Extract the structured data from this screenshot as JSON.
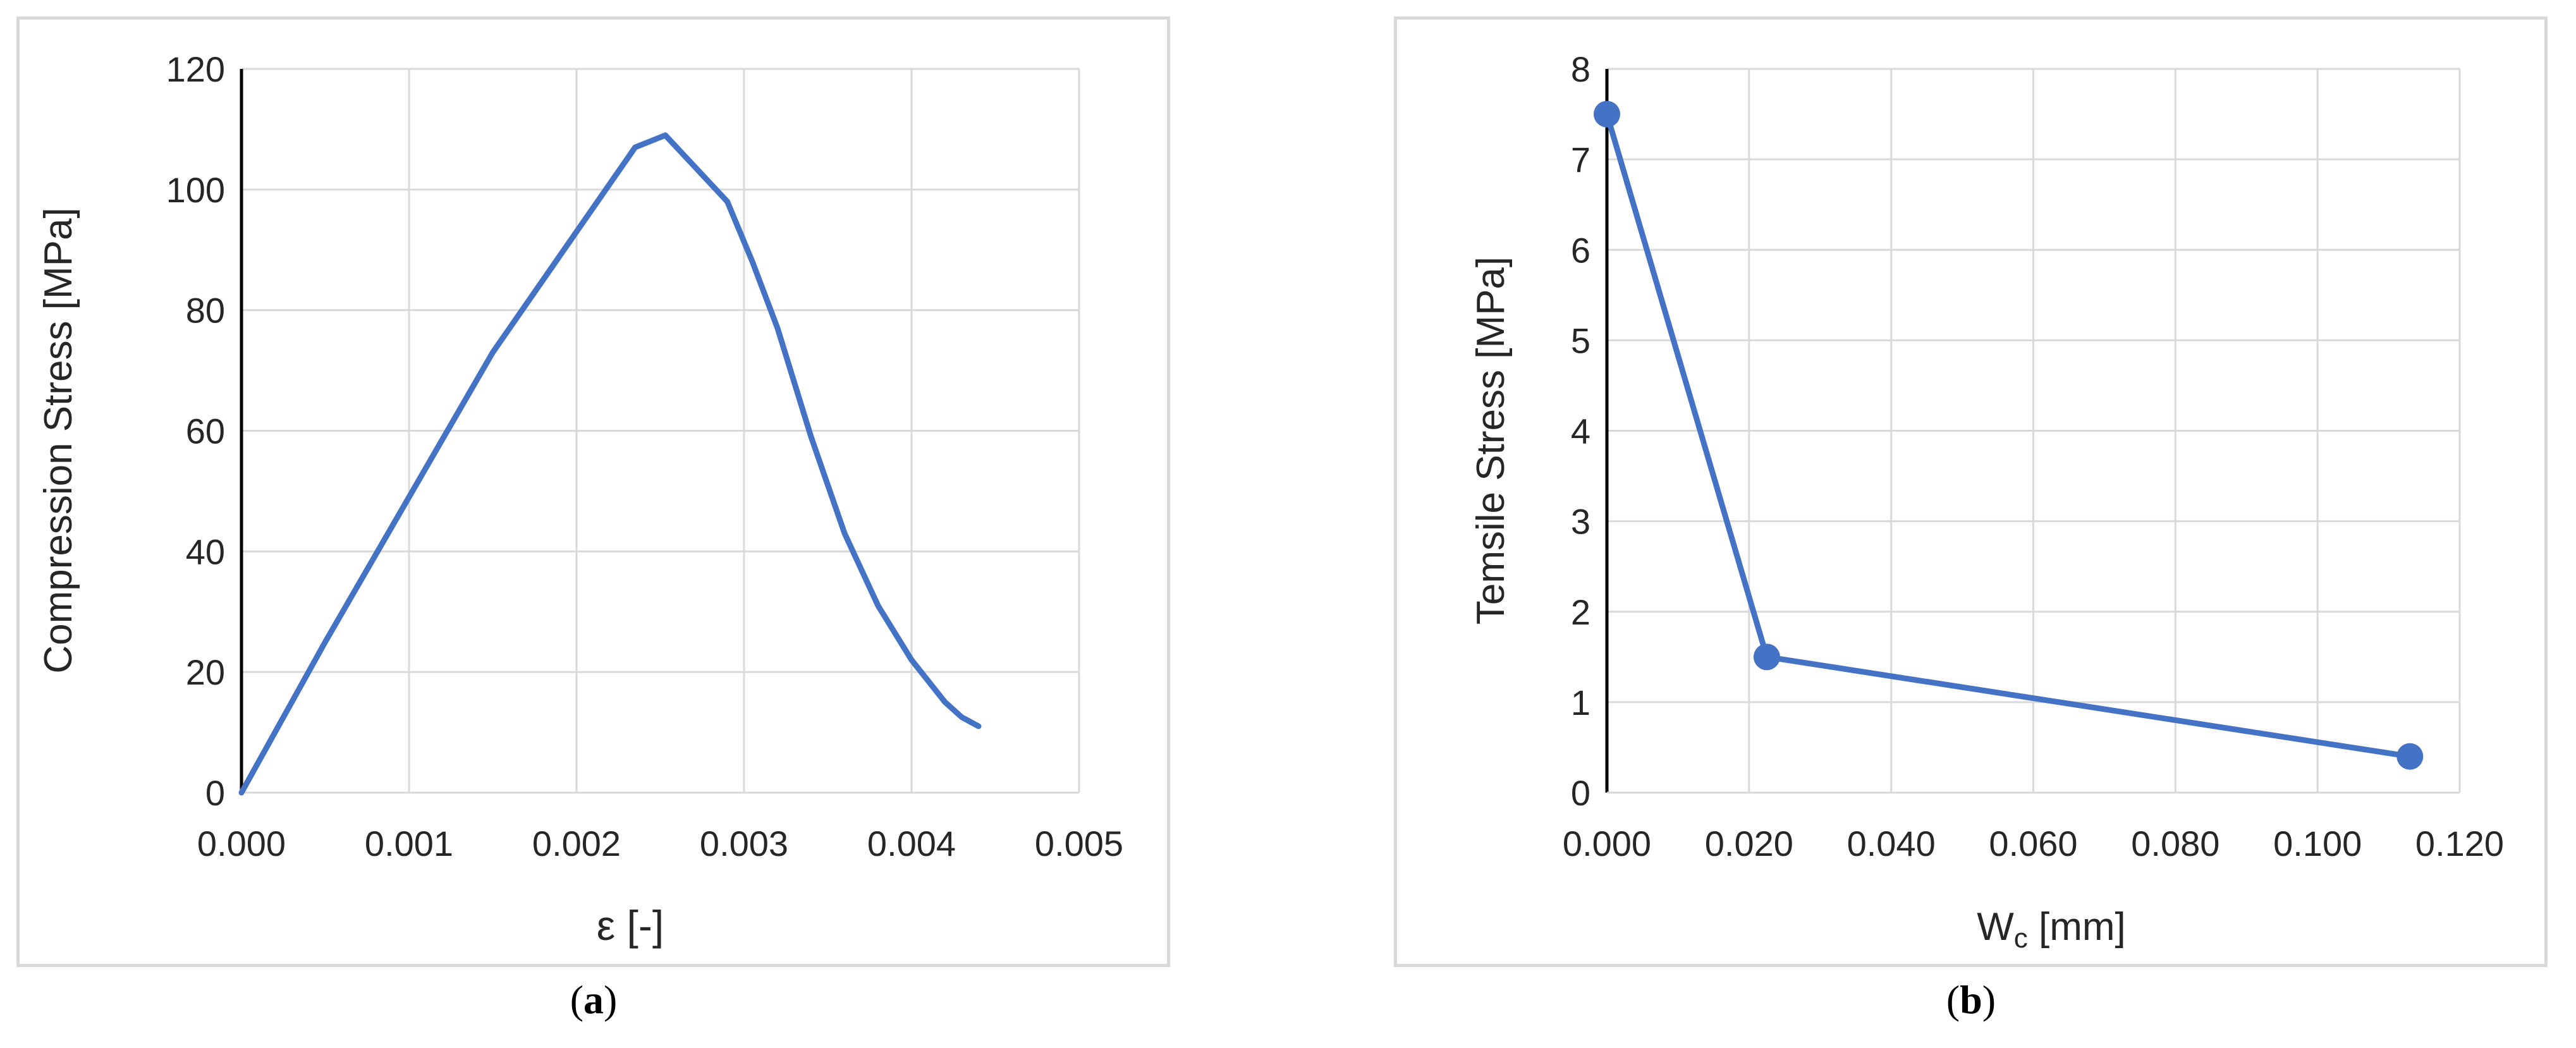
{
  "charts": {
    "a": {
      "caption_letter": "a",
      "ylabel": "Compression Stress [MPa]",
      "xlabel": "ε [-]"
    },
    "b": {
      "caption_letter": "b",
      "ylabel": "Temsile Stress [MPa]",
      "xlabel_main": "W",
      "xlabel_sub": "c",
      "xlabel_unit": " [mm]"
    }
  },
  "chart_data": [
    {
      "type": "line",
      "xlabel": "ε [-]",
      "ylabel": "Compression Stress [MPa]",
      "xlim": [
        0,
        0.005
      ],
      "ylim": [
        0,
        120
      ],
      "xticks": [
        "0.000",
        "0.001",
        "0.002",
        "0.003",
        "0.004",
        "0.005"
      ],
      "yticks": [
        "0",
        "20",
        "40",
        "60",
        "80",
        "100",
        "120"
      ],
      "grid": true,
      "color": "#4472c4",
      "markers": false,
      "series": [
        {
          "x": [
            0,
            0.0005,
            0.001,
            0.0015,
            0.002,
            0.00235,
            0.00253,
            0.0029,
            0.00305,
            0.0032,
            0.0034,
            0.0036,
            0.0038,
            0.004,
            0.0042,
            0.0043,
            0.0044
          ],
          "y": [
            0,
            25,
            49,
            73,
            93,
            107,
            109,
            98,
            88,
            77,
            59,
            43,
            31,
            22,
            15,
            12.5,
            11
          ]
        }
      ]
    },
    {
      "type": "line",
      "xlabel": "Wc [mm]",
      "ylabel": "Temsile Stress [MPa]",
      "xlim": [
        0,
        0.12
      ],
      "ylim": [
        0,
        8
      ],
      "xticks": [
        "0.000",
        "0.020",
        "0.040",
        "0.060",
        "0.080",
        "0.100",
        "0.120"
      ],
      "yticks": [
        "0",
        "1",
        "2",
        "3",
        "4",
        "5",
        "6",
        "7",
        "8"
      ],
      "grid": true,
      "color": "#4472c4",
      "markers": true,
      "series": [
        {
          "x": [
            0,
            0.0225,
            0.113
          ],
          "y": [
            7.5,
            1.5,
            0.4
          ]
        }
      ]
    }
  ]
}
